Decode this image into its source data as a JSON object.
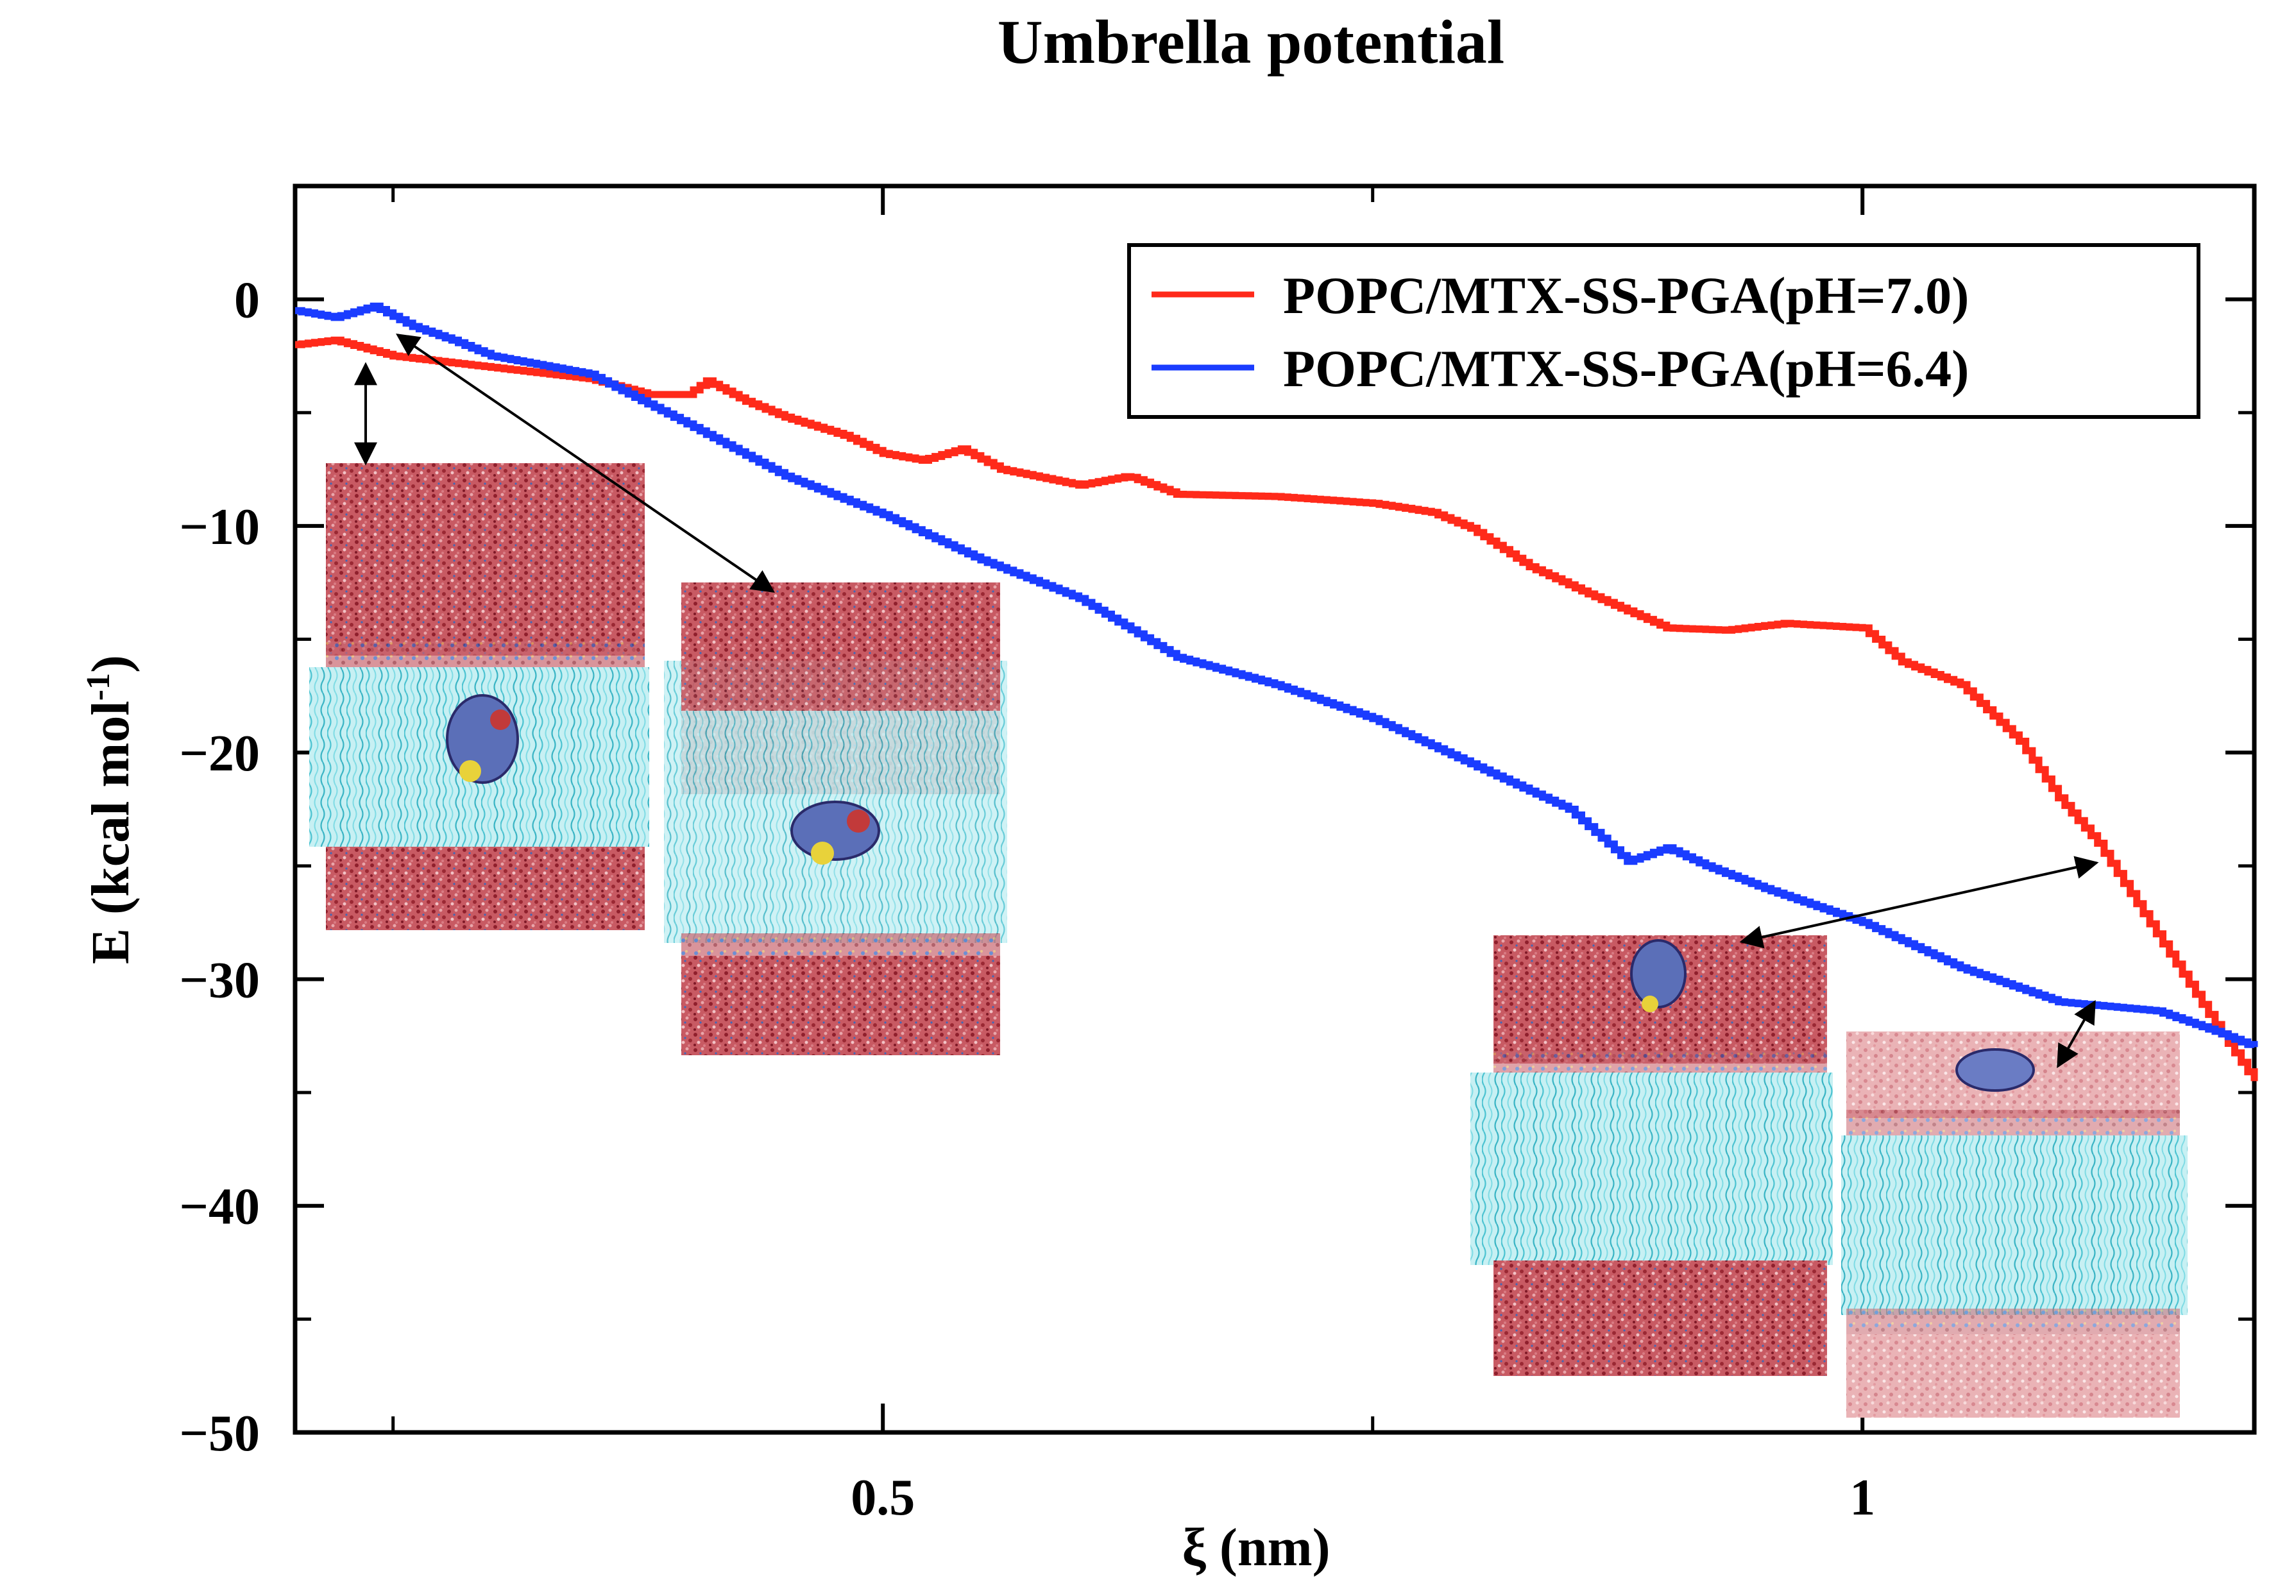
{
  "chart_data": {
    "type": "line",
    "title": "Umbrella potential",
    "xlabel": "ξ (nm)",
    "ylabel_main": "E (kcal mol",
    "ylabel_sup": "-1",
    "ylabel_close": ")",
    "xlim": [
      0.2,
      1.2
    ],
    "ylim": [
      -50,
      5
    ],
    "xticks": [
      {
        "value": 0.5,
        "label": "0.5"
      },
      {
        "value": 1.0,
        "label": "1"
      }
    ],
    "xticks_minor": [
      0.25,
      0.75
    ],
    "yticks": [
      {
        "value": 0,
        "label": "0"
      },
      {
        "value": -10,
        "label": "−10"
      },
      {
        "value": -20,
        "label": "−20"
      },
      {
        "value": -30,
        "label": "−30"
      },
      {
        "value": -40,
        "label": "−40"
      },
      {
        "value": -50,
        "label": "−50"
      }
    ],
    "yticks_minor": [
      -5,
      -15,
      -25,
      -35,
      -45
    ],
    "legend_position": "top-right",
    "series": [
      {
        "name": "POPC/MTX-SS-PGA(pH=7.0)",
        "color": "#ff2a1a",
        "x": [
          0.2,
          0.22,
          0.25,
          0.3,
          0.35,
          0.38,
          0.4,
          0.41,
          0.43,
          0.45,
          0.48,
          0.5,
          0.52,
          0.54,
          0.56,
          0.6,
          0.625,
          0.65,
          0.7,
          0.75,
          0.78,
          0.8,
          0.83,
          0.86,
          0.9,
          0.93,
          0.96,
          1.0,
          1.02,
          1.05,
          1.08,
          1.1,
          1.12,
          1.15,
          1.18,
          1.2
        ],
        "y": [
          -2.0,
          -1.8,
          -2.5,
          -3.0,
          -3.5,
          -4.2,
          -4.2,
          -3.6,
          -4.5,
          -5.2,
          -6.0,
          -6.8,
          -7.1,
          -6.6,
          -7.5,
          -8.2,
          -7.8,
          -8.6,
          -8.7,
          -9.0,
          -9.4,
          -10.1,
          -11.8,
          -13.0,
          -14.5,
          -14.6,
          -14.3,
          -14.5,
          -16.0,
          -17.0,
          -19.5,
          -22.0,
          -24.0,
          -28.0,
          -32.0,
          -34.5
        ]
      },
      {
        "name": "POPC/MTX-SS-PGA(pH=6.4)",
        "color": "#1a3cff",
        "x": [
          0.2,
          0.22,
          0.24,
          0.26,
          0.28,
          0.3,
          0.35,
          0.4,
          0.45,
          0.5,
          0.55,
          0.6,
          0.65,
          0.7,
          0.75,
          0.8,
          0.85,
          0.88,
          0.9,
          0.92,
          0.95,
          1.0,
          1.05,
          1.1,
          1.15,
          1.18,
          1.2
        ],
        "y": [
          -0.5,
          -0.8,
          -0.3,
          -1.2,
          -1.8,
          -2.5,
          -3.3,
          -5.5,
          -7.8,
          -9.5,
          -11.5,
          -13.2,
          -15.8,
          -17.0,
          -18.5,
          -20.5,
          -22.5,
          -24.8,
          -24.2,
          -25.0,
          -26.0,
          -27.5,
          -29.5,
          -31.0,
          -31.4,
          -32.3,
          -33.0
        ]
      }
    ],
    "legend_colors": [
      "#ff2a1a",
      "#1a3cff"
    ]
  },
  "insets": [
    {
      "name": "snapshot-1"
    },
    {
      "name": "snapshot-2"
    },
    {
      "name": "snapshot-3"
    },
    {
      "name": "snapshot-4"
    }
  ],
  "colors": {
    "water": "#b03a48",
    "water_light": "#e9a2a6",
    "lipid": "#6fd6e0",
    "protein": "#5b6fb8",
    "highlight": "#e8d23a"
  }
}
